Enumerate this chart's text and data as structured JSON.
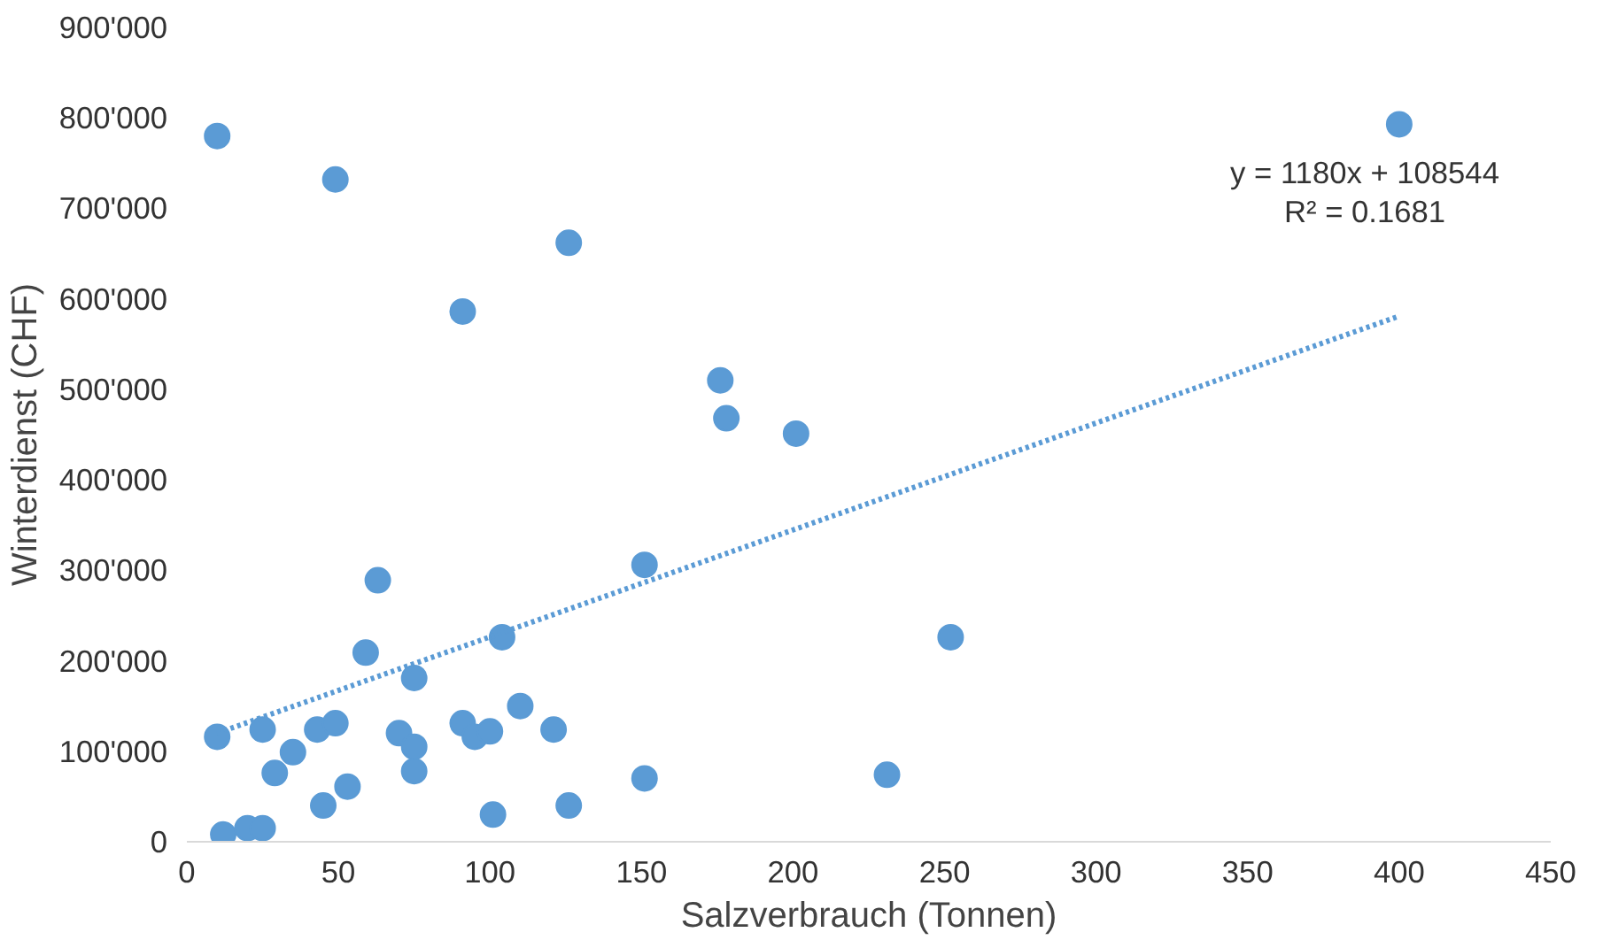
{
  "chart_data": {
    "type": "scatter",
    "xlabel": "Salzverbrauch (Tonnen)",
    "ylabel": "Winterdienst (CHF)",
    "annotations": [
      "y = 1180x + 108544",
      "R² = 0.1681"
    ],
    "series": [
      {
        "color": "#5b9bd5",
        "marker": "circle",
        "x": [
          10,
          49,
          126,
          91,
          400,
          176,
          178,
          201,
          151,
          252,
          104,
          63,
          59,
          75,
          10,
          25,
          43,
          49,
          35,
          29,
          12,
          20,
          25,
          45,
          53,
          70,
          75,
          75,
          91,
          95,
          100,
          101,
          110,
          121,
          126,
          151,
          231
        ],
        "values": [
          780000,
          732000,
          662000,
          586000,
          793000,
          510000,
          468000,
          451000,
          306000,
          226000,
          226000,
          289000,
          209000,
          181000,
          116000,
          124000,
          124000,
          131000,
          99000,
          76000,
          8000,
          15000,
          15000,
          40000,
          61000,
          120000,
          105000,
          78000,
          131000,
          116000,
          122000,
          30000,
          150000,
          124000,
          40000,
          70000,
          74000
        ]
      },
      {
        "type": "line",
        "color": "#5b9bd5",
        "line_style": "dotted",
        "x": [
          10,
          400
        ],
        "values": [
          120000,
          581000
        ]
      }
    ],
    "xlim": [
      0,
      450
    ],
    "xticks": [
      0,
      50,
      100,
      150,
      200,
      250,
      300,
      350,
      400,
      450
    ],
    "ylim": [
      0,
      900000
    ],
    "yticks": [
      {
        "value": 0,
        "label": "0"
      },
      {
        "value": 100000,
        "label": "100'000"
      },
      {
        "value": 200000,
        "label": "200'000"
      },
      {
        "value": 300000,
        "label": "300'000"
      },
      {
        "value": 400000,
        "label": "400'000"
      },
      {
        "value": 500000,
        "label": "500'000"
      },
      {
        "value": 600000,
        "label": "600'000"
      },
      {
        "value": 700000,
        "label": "700'000"
      },
      {
        "value": 800000,
        "label": "800'000"
      },
      {
        "value": 900000,
        "label": "900'000"
      }
    ],
    "grid": false
  }
}
